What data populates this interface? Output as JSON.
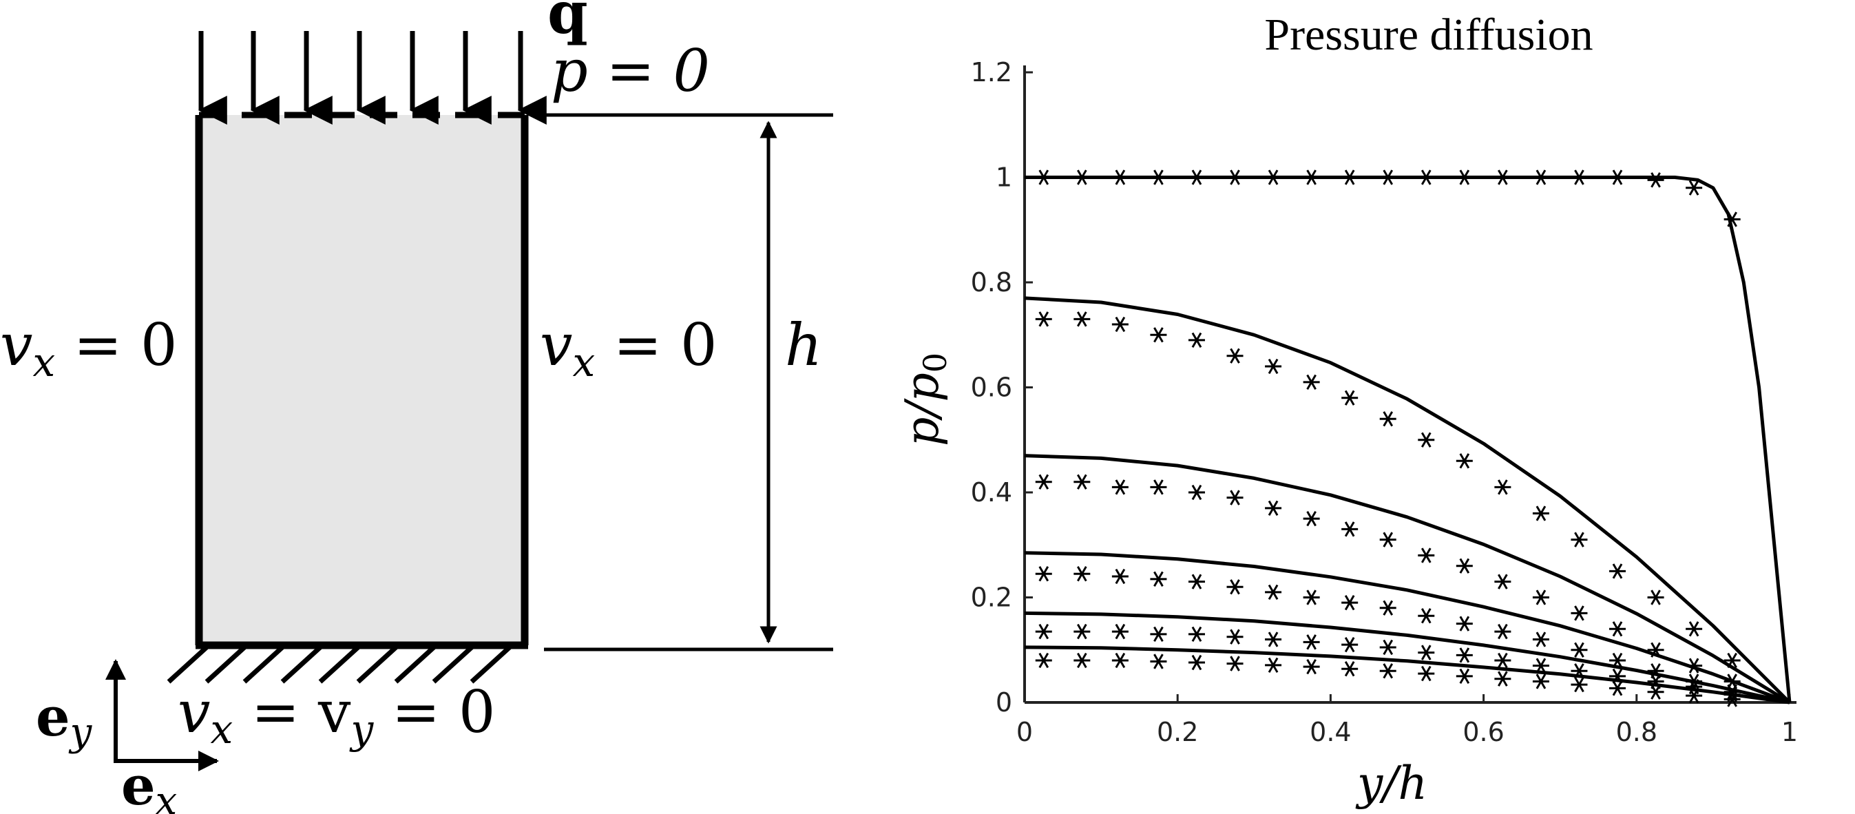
{
  "schematic": {
    "load_label": "q",
    "top_bc": "p = 0",
    "left_bc": "v",
    "left_bc_sub": "x",
    "left_bc_rhs": " = 0",
    "right_bc": "v",
    "right_bc_sub": "x",
    "right_bc_rhs": " = 0",
    "height_label": "h",
    "bottom_bc_v1": "v",
    "bottom_bc_sub1": "x",
    "bottom_bc_mid": " = v",
    "bottom_bc_sub2": "y",
    "bottom_bc_rhs": " = 0",
    "axis_ey": "e",
    "axis_ey_sub": "y",
    "axis_ex": "e",
    "axis_ex_sub": "x",
    "colors": {
      "fill": "#e6e6e6",
      "stroke": "#000000"
    }
  },
  "chart_data": {
    "type": "line",
    "title": "Pressure diffusion",
    "xlabel": "y/h",
    "ylabel": "p/p0",
    "xlim": [
      0,
      1
    ],
    "ylim": [
      0,
      1.2
    ],
    "xticks": [
      "0",
      "0.2",
      "0.4",
      "0.6",
      "0.8",
      "1"
    ],
    "yticks": [
      "0",
      "0.2",
      "0.4",
      "0.6",
      "0.8",
      "1",
      "1.2"
    ],
    "grid": false,
    "series": [
      {
        "style": "solid line",
        "x": [
          0,
          0.1,
          0.2,
          0.3,
          0.4,
          0.5,
          0.6,
          0.7,
          0.75,
          0.8,
          0.85,
          0.88,
          0.9,
          0.92,
          0.94,
          0.96,
          0.98,
          1.0
        ],
        "y": [
          1.0,
          1.0,
          1.0,
          1.0,
          1.0,
          1.0,
          1.0,
          1.0,
          1.0,
          1.0,
          1.0,
          0.995,
          0.98,
          0.93,
          0.8,
          0.6,
          0.3,
          0.0
        ]
      },
      {
        "style": "asterisk markers",
        "x": [
          0.025,
          0.075,
          0.125,
          0.175,
          0.225,
          0.275,
          0.325,
          0.375,
          0.425,
          0.475,
          0.525,
          0.575,
          0.625,
          0.675,
          0.725,
          0.775,
          0.825,
          0.875,
          0.925
        ],
        "y": [
          1.0,
          1.0,
          1.0,
          1.0,
          1.0,
          1.0,
          1.0,
          1.0,
          1.0,
          1.0,
          1.0,
          1.0,
          1.0,
          1.0,
          1.0,
          1.0,
          0.995,
          0.98,
          0.92
        ]
      },
      {
        "style": "solid line",
        "x": [
          0,
          0.1,
          0.2,
          0.3,
          0.4,
          0.5,
          0.6,
          0.7,
          0.8,
          0.9,
          1.0
        ],
        "y": [
          0.77,
          0.762,
          0.739,
          0.7,
          0.647,
          0.578,
          0.493,
          0.393,
          0.277,
          0.146,
          0.0
        ]
      },
      {
        "style": "asterisk markers",
        "x": [
          0.025,
          0.075,
          0.125,
          0.175,
          0.225,
          0.275,
          0.325,
          0.375,
          0.425,
          0.475,
          0.525,
          0.575,
          0.625,
          0.675,
          0.725,
          0.775,
          0.825,
          0.875,
          0.925
        ],
        "y": [
          0.73,
          0.73,
          0.72,
          0.7,
          0.69,
          0.66,
          0.64,
          0.61,
          0.58,
          0.54,
          0.5,
          0.46,
          0.41,
          0.36,
          0.31,
          0.25,
          0.2,
          0.14,
          0.08
        ]
      },
      {
        "style": "solid line",
        "x": [
          0,
          0.1,
          0.2,
          0.3,
          0.4,
          0.5,
          0.6,
          0.7,
          0.8,
          0.9,
          1.0
        ],
        "y": [
          0.47,
          0.465,
          0.451,
          0.427,
          0.395,
          0.353,
          0.301,
          0.24,
          0.169,
          0.089,
          0.0
        ]
      },
      {
        "style": "asterisk markers",
        "x": [
          0.025,
          0.075,
          0.125,
          0.175,
          0.225,
          0.275,
          0.325,
          0.375,
          0.425,
          0.475,
          0.525,
          0.575,
          0.625,
          0.675,
          0.725,
          0.775,
          0.825,
          0.875,
          0.925
        ],
        "y": [
          0.42,
          0.42,
          0.41,
          0.41,
          0.4,
          0.39,
          0.37,
          0.35,
          0.33,
          0.31,
          0.28,
          0.26,
          0.23,
          0.2,
          0.17,
          0.14,
          0.1,
          0.07,
          0.04
        ]
      },
      {
        "style": "solid line",
        "x": [
          0,
          0.1,
          0.2,
          0.3,
          0.4,
          0.5,
          0.6,
          0.7,
          0.8,
          0.9,
          1.0
        ],
        "y": [
          0.285,
          0.282,
          0.273,
          0.259,
          0.239,
          0.214,
          0.182,
          0.146,
          0.103,
          0.054,
          0.0
        ]
      },
      {
        "style": "asterisk markers",
        "x": [
          0.025,
          0.075,
          0.125,
          0.175,
          0.225,
          0.275,
          0.325,
          0.375,
          0.425,
          0.475,
          0.525,
          0.575,
          0.625,
          0.675,
          0.725,
          0.775,
          0.825,
          0.875,
          0.925
        ],
        "y": [
          0.245,
          0.245,
          0.24,
          0.235,
          0.23,
          0.22,
          0.21,
          0.2,
          0.19,
          0.18,
          0.165,
          0.15,
          0.135,
          0.12,
          0.1,
          0.08,
          0.06,
          0.04,
          0.02
        ]
      },
      {
        "style": "solid line",
        "x": [
          0,
          0.1,
          0.2,
          0.3,
          0.4,
          0.5,
          0.6,
          0.7,
          0.8,
          0.9,
          1.0
        ],
        "y": [
          0.17,
          0.168,
          0.163,
          0.155,
          0.143,
          0.128,
          0.109,
          0.087,
          0.061,
          0.032,
          0.0
        ]
      },
      {
        "style": "asterisk markers",
        "x": [
          0.025,
          0.075,
          0.125,
          0.175,
          0.225,
          0.275,
          0.325,
          0.375,
          0.425,
          0.475,
          0.525,
          0.575,
          0.625,
          0.675,
          0.725,
          0.775,
          0.825,
          0.875,
          0.925
        ],
        "y": [
          0.135,
          0.135,
          0.135,
          0.13,
          0.13,
          0.125,
          0.12,
          0.115,
          0.11,
          0.105,
          0.095,
          0.09,
          0.08,
          0.07,
          0.06,
          0.05,
          0.04,
          0.03,
          0.015
        ]
      },
      {
        "style": "solid line",
        "x": [
          0,
          0.1,
          0.2,
          0.3,
          0.4,
          0.5,
          0.6,
          0.7,
          0.8,
          0.9,
          1.0
        ],
        "y": [
          0.105,
          0.104,
          0.1,
          0.095,
          0.088,
          0.079,
          0.067,
          0.054,
          0.038,
          0.02,
          0.0
        ]
      },
      {
        "style": "asterisk markers",
        "x": [
          0.025,
          0.075,
          0.125,
          0.175,
          0.225,
          0.275,
          0.325,
          0.375,
          0.425,
          0.475,
          0.525,
          0.575,
          0.625,
          0.675,
          0.725,
          0.775,
          0.825,
          0.875,
          0.925
        ],
        "y": [
          0.08,
          0.08,
          0.08,
          0.078,
          0.076,
          0.074,
          0.071,
          0.068,
          0.064,
          0.06,
          0.055,
          0.05,
          0.045,
          0.04,
          0.034,
          0.027,
          0.02,
          0.013,
          0.006
        ]
      }
    ]
  }
}
